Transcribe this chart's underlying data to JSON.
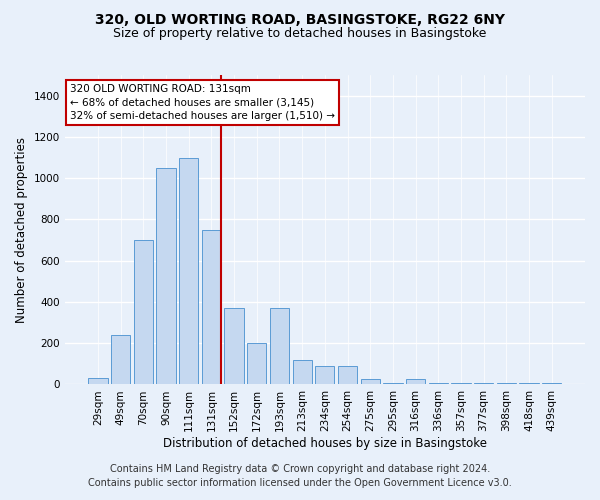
{
  "title1": "320, OLD WORTING ROAD, BASINGSTOKE, RG22 6NY",
  "title2": "Size of property relative to detached houses in Basingstoke",
  "xlabel": "Distribution of detached houses by size in Basingstoke",
  "ylabel": "Number of detached properties",
  "categories": [
    "29sqm",
    "49sqm",
    "70sqm",
    "90sqm",
    "111sqm",
    "131sqm",
    "152sqm",
    "172sqm",
    "193sqm",
    "213sqm",
    "234sqm",
    "254sqm",
    "275sqm",
    "295sqm",
    "316sqm",
    "336sqm",
    "357sqm",
    "377sqm",
    "398sqm",
    "418sqm",
    "439sqm"
  ],
  "values": [
    30,
    240,
    700,
    1050,
    1100,
    750,
    370,
    200,
    370,
    120,
    90,
    90,
    25,
    5,
    25,
    5,
    5,
    5,
    5,
    5,
    5
  ],
  "bar_color": "#c5d8f0",
  "bar_edge_color": "#5b9bd5",
  "highlight_index": 5,
  "highlight_color": "#c00000",
  "ylim": [
    0,
    1500
  ],
  "yticks": [
    0,
    200,
    400,
    600,
    800,
    1000,
    1200,
    1400
  ],
  "annotation_text": "320 OLD WORTING ROAD: 131sqm\n← 68% of detached houses are smaller (3,145)\n32% of semi-detached houses are larger (1,510) →",
  "annotation_box_color": "#ffffff",
  "annotation_box_edge": "#c00000",
  "footer1": "Contains HM Land Registry data © Crown copyright and database right 2024.",
  "footer2": "Contains public sector information licensed under the Open Government Licence v3.0.",
  "background_color": "#e8f0fa",
  "plot_bg_color": "#e8f0fa",
  "grid_color": "#ffffff",
  "title1_fontsize": 10,
  "title2_fontsize": 9,
  "xlabel_fontsize": 8.5,
  "ylabel_fontsize": 8.5,
  "tick_fontsize": 7.5,
  "footer_fontsize": 7,
  "ann_fontsize": 7.5
}
